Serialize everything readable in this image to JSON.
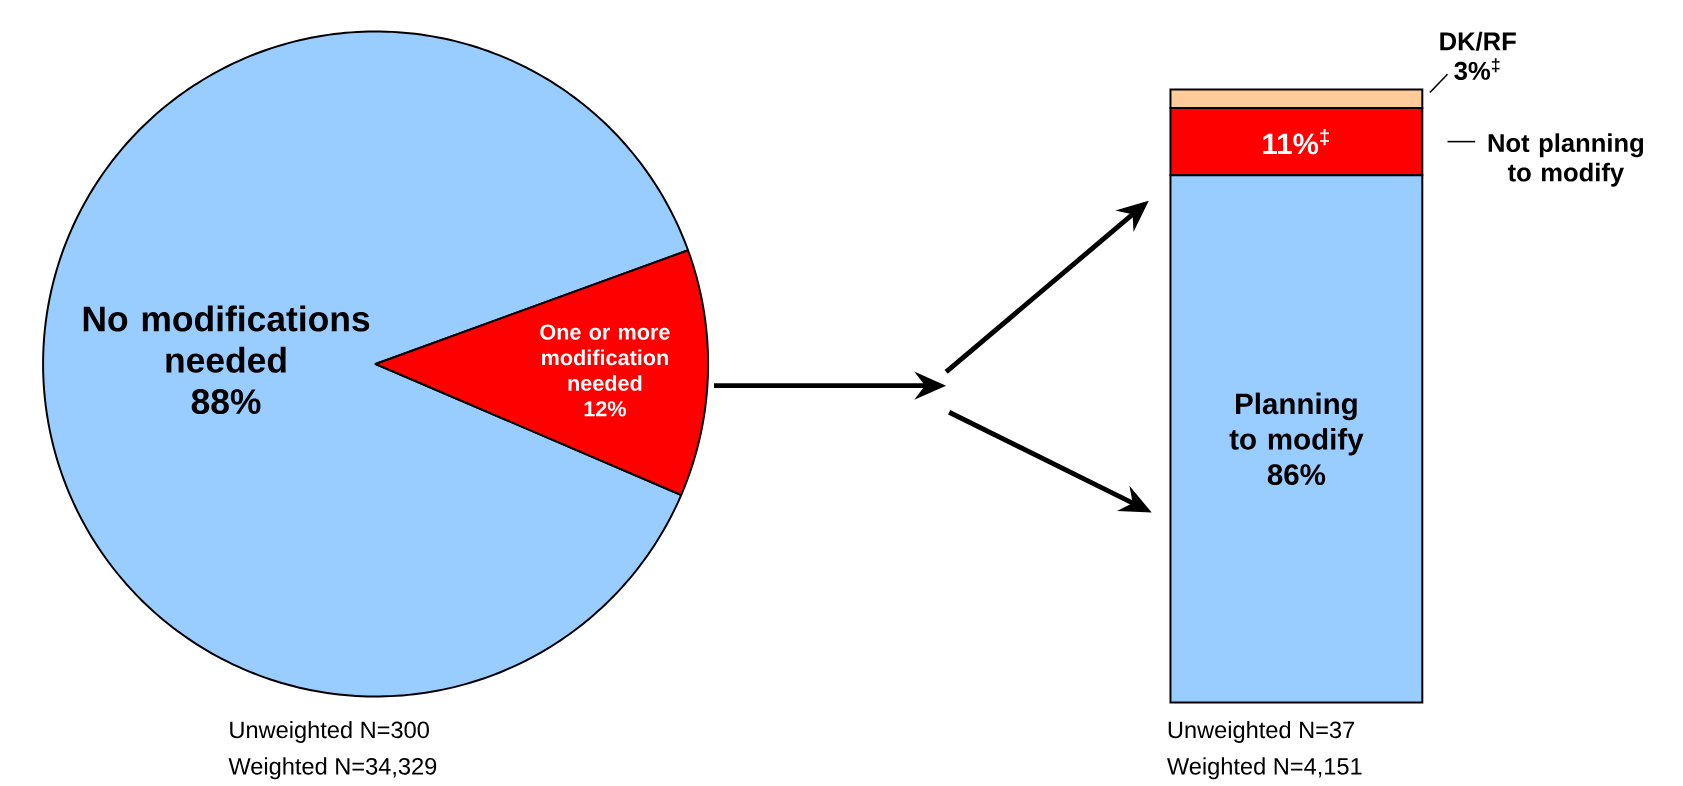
{
  "chart_data": [
    {
      "type": "pie",
      "categories": [
        "No modifications needed",
        "One or more modification needed"
      ],
      "values": [
        88,
        12
      ],
      "colors": [
        "#99ccff",
        "#ff0000"
      ],
      "value_labels": [
        "88%",
        "12%"
      ],
      "annotations": [
        "Unweighted N=300",
        "Weighted N=34,329"
      ]
    },
    {
      "type": "bar",
      "stacked": true,
      "categories": [
        null
      ],
      "series": [
        {
          "name": "Planning to modify",
          "color": "#99ccff",
          "values": [
            86
          ],
          "value_labels": [
            "86%"
          ]
        },
        {
          "name": "Not planning to modify",
          "color": "#ff0000",
          "values": [
            11
          ],
          "value_labels": [
            "11%$^{‡}$"
          ]
        },
        {
          "name": "DK/RF",
          "color": "#ffcc99",
          "values": [
            3
          ],
          "value_labels": [
            "3%$^{‡}$"
          ]
        }
      ],
      "annotations": [
        "Unweighted N=37",
        "Weighted N=4,151"
      ]
    }
  ]
}
